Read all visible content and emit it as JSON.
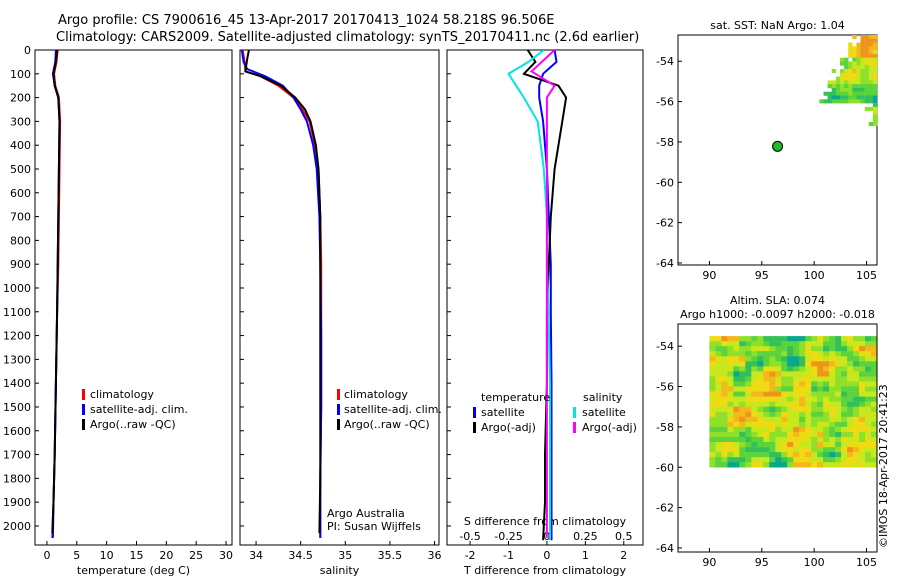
{
  "header": {
    "line1": "Argo profile: CS 7900616_45 13-Apr-2017 20170413_1024 58.218S 96.506E",
    "line2": "Climatology: CARS2009. Satellite-adjusted climatology: synTS_20170411.nc (2.6d earlier)"
  },
  "colors": {
    "climatology": "#ff0000",
    "satellite_adj": "#0000ff",
    "argo": "#000000",
    "satellite_salinity": "#00e5e5",
    "argo_adj_salinity": "#ff00ff",
    "float_marker": "#22bb22"
  },
  "credit": "©IMOS 18-Apr-2017 20:41:23",
  "chart_data": [
    {
      "type": "line",
      "panel": "temperature",
      "xlabel": "temperature (deg C)",
      "xlim": [
        -2,
        31
      ],
      "xticks": [
        "0",
        "5",
        "10",
        "15",
        "20",
        "25",
        "30"
      ],
      "ylim": [
        0,
        2080
      ],
      "yticks": [
        "0",
        "100",
        "200",
        "300",
        "400",
        "500",
        "600",
        "700",
        "800",
        "900",
        "1000",
        "1100",
        "1200",
        "1300",
        "1400",
        "1500",
        "1600",
        "1700",
        "1800",
        "1900",
        "2000"
      ],
      "legend": [
        "climatology",
        "satellite-adj. clim.",
        "Argo(..raw -QC)"
      ],
      "series": [
        {
          "name": "climatology",
          "x": [
            1.8,
            1.6,
            1.2,
            1.4,
            2.0,
            2.2,
            2.1,
            2.0,
            1.9,
            1.7,
            1.5,
            1.3,
            1.1,
            0.9
          ],
          "y": [
            0,
            50,
            100,
            150,
            200,
            300,
            500,
            700,
            900,
            1100,
            1400,
            1700,
            1900,
            2050
          ]
        },
        {
          "name": "satellite-adj. clim.",
          "x": [
            1.5,
            1.4,
            1.0,
            1.3,
            1.9,
            2.1,
            2.0,
            1.9,
            1.8,
            1.7,
            1.5,
            1.3,
            1.1,
            1.0
          ],
          "y": [
            0,
            50,
            100,
            150,
            200,
            300,
            500,
            700,
            900,
            1100,
            1400,
            1700,
            1900,
            2050
          ]
        },
        {
          "name": "Argo(..raw -QC)",
          "x": [
            1.7,
            1.5,
            1.1,
            1.3,
            1.9,
            2.1,
            2.0,
            1.9,
            1.8,
            1.7,
            1.5,
            1.3,
            1.1,
            0.9
          ],
          "y": [
            0,
            50,
            100,
            150,
            200,
            300,
            500,
            700,
            900,
            1100,
            1400,
            1700,
            1900,
            2030
          ]
        }
      ]
    },
    {
      "type": "line",
      "panel": "salinity",
      "xlabel": "salinity",
      "xlim": [
        33.82,
        36.05
      ],
      "xticks": [
        "34",
        "34.5",
        "35",
        "35.5",
        "36"
      ],
      "ylim": [
        0,
        2080
      ],
      "legend": [
        "climatology",
        "satellite-adj. clim.",
        "Argo(..raw -QC)"
      ],
      "annotation": [
        "Argo Australia",
        "PI: Susan Wijffels"
      ],
      "series": [
        {
          "name": "climatology",
          "x": [
            33.85,
            33.87,
            33.88,
            34.05,
            34.25,
            34.42,
            34.52,
            34.6,
            34.66,
            34.7,
            34.72,
            34.73,
            34.73,
            34.73,
            34.72,
            34.72
          ],
          "y": [
            0,
            50,
            90,
            110,
            150,
            200,
            250,
            300,
            400,
            500,
            700,
            900,
            1200,
            1500,
            1800,
            2050
          ]
        },
        {
          "name": "satellite-adj. clim.",
          "x": [
            33.84,
            33.86,
            33.9,
            34.1,
            34.3,
            34.42,
            34.5,
            34.57,
            34.64,
            34.68,
            34.71,
            34.72,
            34.73,
            34.73,
            34.72,
            34.72
          ],
          "y": [
            0,
            50,
            80,
            110,
            150,
            200,
            250,
            300,
            400,
            500,
            700,
            900,
            1200,
            1500,
            1800,
            2050
          ]
        },
        {
          "name": "Argo(..raw -QC)",
          "x": [
            33.92,
            33.9,
            33.88,
            34.05,
            34.28,
            34.44,
            34.55,
            34.61,
            34.67,
            34.7,
            34.72,
            34.72,
            34.72,
            34.72,
            34.72,
            34.71
          ],
          "y": [
            0,
            40,
            90,
            110,
            150,
            200,
            250,
            300,
            400,
            500,
            700,
            900,
            1200,
            1500,
            1800,
            2030
          ]
        }
      ]
    },
    {
      "type": "line",
      "panel": "difference",
      "xlabel": "T difference from climatology",
      "xlabel_top": "S difference from climatology",
      "xlim": [
        -2.6,
        2.5
      ],
      "xticks": [
        "-2",
        "-1",
        "0",
        "1",
        "2"
      ],
      "xticks_top": [
        "-0.5",
        "-0.25",
        "0",
        "0.25",
        "0.5"
      ],
      "xlim_top": [
        -0.65,
        0.625
      ],
      "ylim": [
        0,
        2080
      ],
      "legend_temperature": [
        "temperature",
        "satellite",
        "Argo(-adj)"
      ],
      "legend_salinity": [
        "salinity",
        "satellite",
        "Argo(-adj)"
      ],
      "series": [
        {
          "name": "temperature satellite",
          "x": [
            0.2,
            0.25,
            -0.1,
            -0.2,
            -0.2,
            -0.1,
            0.0,
            0.05,
            0.1,
            0.1,
            0.12,
            0.12,
            0.12,
            0.12
          ],
          "y": [
            0,
            50,
            100,
            150,
            200,
            300,
            500,
            700,
            900,
            1100,
            1400,
            1700,
            1900,
            2060
          ]
        },
        {
          "name": "temperature Argo(-adj)",
          "x": [
            -0.5,
            -0.3,
            -0.6,
            0.3,
            0.5,
            0.4,
            0.2,
            0.1,
            0.05,
            0.0,
            0.0,
            -0.05,
            -0.05,
            -0.1
          ],
          "y": [
            0,
            50,
            100,
            150,
            200,
            300,
            500,
            700,
            900,
            1100,
            1400,
            1700,
            1900,
            2060
          ]
        },
        {
          "name": "salinity satellite",
          "x": [
            -0.02,
            -0.12,
            -0.25,
            -0.2,
            -0.15,
            -0.06,
            -0.02,
            0.0,
            0.0,
            0.01,
            0.02,
            0.02,
            0.02,
            0.02
          ],
          "y": [
            0,
            50,
            100,
            150,
            200,
            300,
            500,
            700,
            900,
            1100,
            1400,
            1700,
            1900,
            2060
          ]
        },
        {
          "name": "salinity Argo(-adj)",
          "x": [
            0.05,
            -0.05,
            -0.1,
            0.05,
            0.0,
            0.0,
            0.0,
            0.0,
            0.0,
            0.0,
            0.0,
            0.0,
            0.0,
            0.0
          ],
          "y": [
            0,
            60,
            90,
            150,
            200,
            300,
            500,
            700,
            900,
            1100,
            1400,
            1700,
            1900,
            2050
          ]
        }
      ]
    },
    {
      "type": "heatmap",
      "panel": "sst",
      "title": "sat. SST: NaN Argo: 1.04",
      "xlim": [
        87,
        106
      ],
      "ylim": [
        -64.1,
        -52.7
      ],
      "xticks": [
        "90",
        "95",
        "100",
        "105"
      ],
      "yticks": [
        "-54",
        "-56",
        "-58",
        "-60",
        "-62",
        "-64"
      ],
      "float_position": {
        "lon": 96.506,
        "lat": -58.218
      },
      "data_extent": {
        "lon": [
          100.5,
          106
        ],
        "lat": [
          -57.2,
          -52.7
        ]
      }
    },
    {
      "type": "heatmap",
      "panel": "sla",
      "title": [
        "Altim. SLA: 0.074",
        "Argo h1000: -0.0097 h2000: -0.018"
      ],
      "xlim": [
        87,
        106
      ],
      "ylim": [
        -64.2,
        -52.9
      ],
      "xticks": [
        "90",
        "95",
        "100",
        "105"
      ],
      "yticks": [
        "-54",
        "-56",
        "-58",
        "-60",
        "-62",
        "-64"
      ],
      "data_extent": {
        "lon": [
          90,
          106
        ],
        "lat": [
          -60,
          -53.5
        ]
      }
    }
  ]
}
